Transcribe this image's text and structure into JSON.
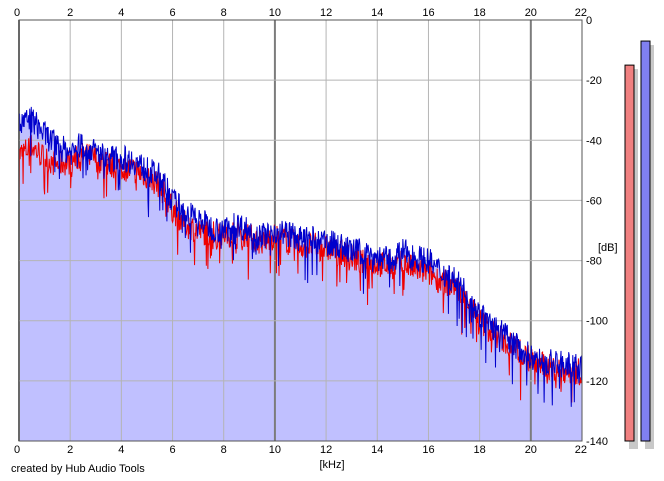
{
  "credit": "created by Hub Audio Tools",
  "colors": {
    "background": "#ffffff",
    "fill": "#c0c0ff",
    "channel_left": "#ee0000",
    "channel_right": "#0000cc",
    "grid": "#b4b4b4",
    "grid_major": "#7c7c7c",
    "meter_left": "#f08080",
    "meter_right": "#8080f0"
  },
  "chart_data": {
    "type": "line",
    "title": "",
    "xlabel": "[kHz]",
    "ylabel": "[dB]",
    "xlim": [
      0,
      22
    ],
    "ylim": [
      -140,
      0
    ],
    "grid": true,
    "x_ticks": [
      "0",
      "2",
      "4",
      "6",
      "8",
      "10",
      "12",
      "14",
      "16",
      "18",
      "20",
      "22"
    ],
    "y_ticks": [
      "0",
      "-20",
      "-40",
      "-60",
      "-80",
      "-100",
      "-120",
      "-140"
    ],
    "x_tick_values": [
      0,
      2,
      4,
      6,
      8,
      10,
      12,
      14,
      16,
      18,
      20,
      22
    ],
    "y_tick_values": [
      0,
      -20,
      -40,
      -60,
      -80,
      -100,
      -120,
      -140
    ],
    "x": [
      0,
      0.5,
      1,
      1.5,
      2,
      2.5,
      3,
      3.5,
      4,
      4.5,
      5,
      5.5,
      6,
      6.5,
      7,
      7.5,
      8,
      8.5,
      9,
      9.5,
      10,
      10.5,
      11,
      11.5,
      12,
      12.5,
      13,
      13.5,
      14,
      14.5,
      15,
      15.5,
      16,
      16.5,
      17,
      17.5,
      18,
      18.5,
      19,
      19.5,
      20,
      20.5,
      21,
      21.5,
      22
    ],
    "series": [
      {
        "color": "#ee0000",
        "values": [
          -45,
          -42,
          -46,
          -48,
          -47,
          -45,
          -46,
          -48,
          -49,
          -50,
          -52,
          -55,
          -63,
          -68,
          -70,
          -71,
          -72,
          -70,
          -72,
          -74,
          -72,
          -73,
          -75,
          -75,
          -76,
          -77,
          -79,
          -81,
          -81,
          -82,
          -81,
          -83,
          -84,
          -87,
          -88,
          -93,
          -100,
          -104,
          -107,
          -110,
          -113,
          -115,
          -116,
          -117,
          -117
        ]
      },
      {
        "color": "#0000cc",
        "values": [
          -35,
          -33,
          -38,
          -42,
          -44,
          -41,
          -44,
          -46,
          -46,
          -47,
          -50,
          -52,
          -60,
          -64,
          -66,
          -69,
          -70,
          -68,
          -70,
          -72,
          -70,
          -71,
          -73,
          -73,
          -74,
          -75,
          -77,
          -77,
          -79,
          -80,
          -77,
          -79,
          -80,
          -84,
          -86,
          -91,
          -98,
          -102,
          -105,
          -109,
          -112,
          -114,
          -114,
          -115,
          -116
        ]
      }
    ],
    "level_meters": {
      "left_db": -15,
      "right_db": -7,
      "range": [
        -140,
        0
      ]
    }
  }
}
